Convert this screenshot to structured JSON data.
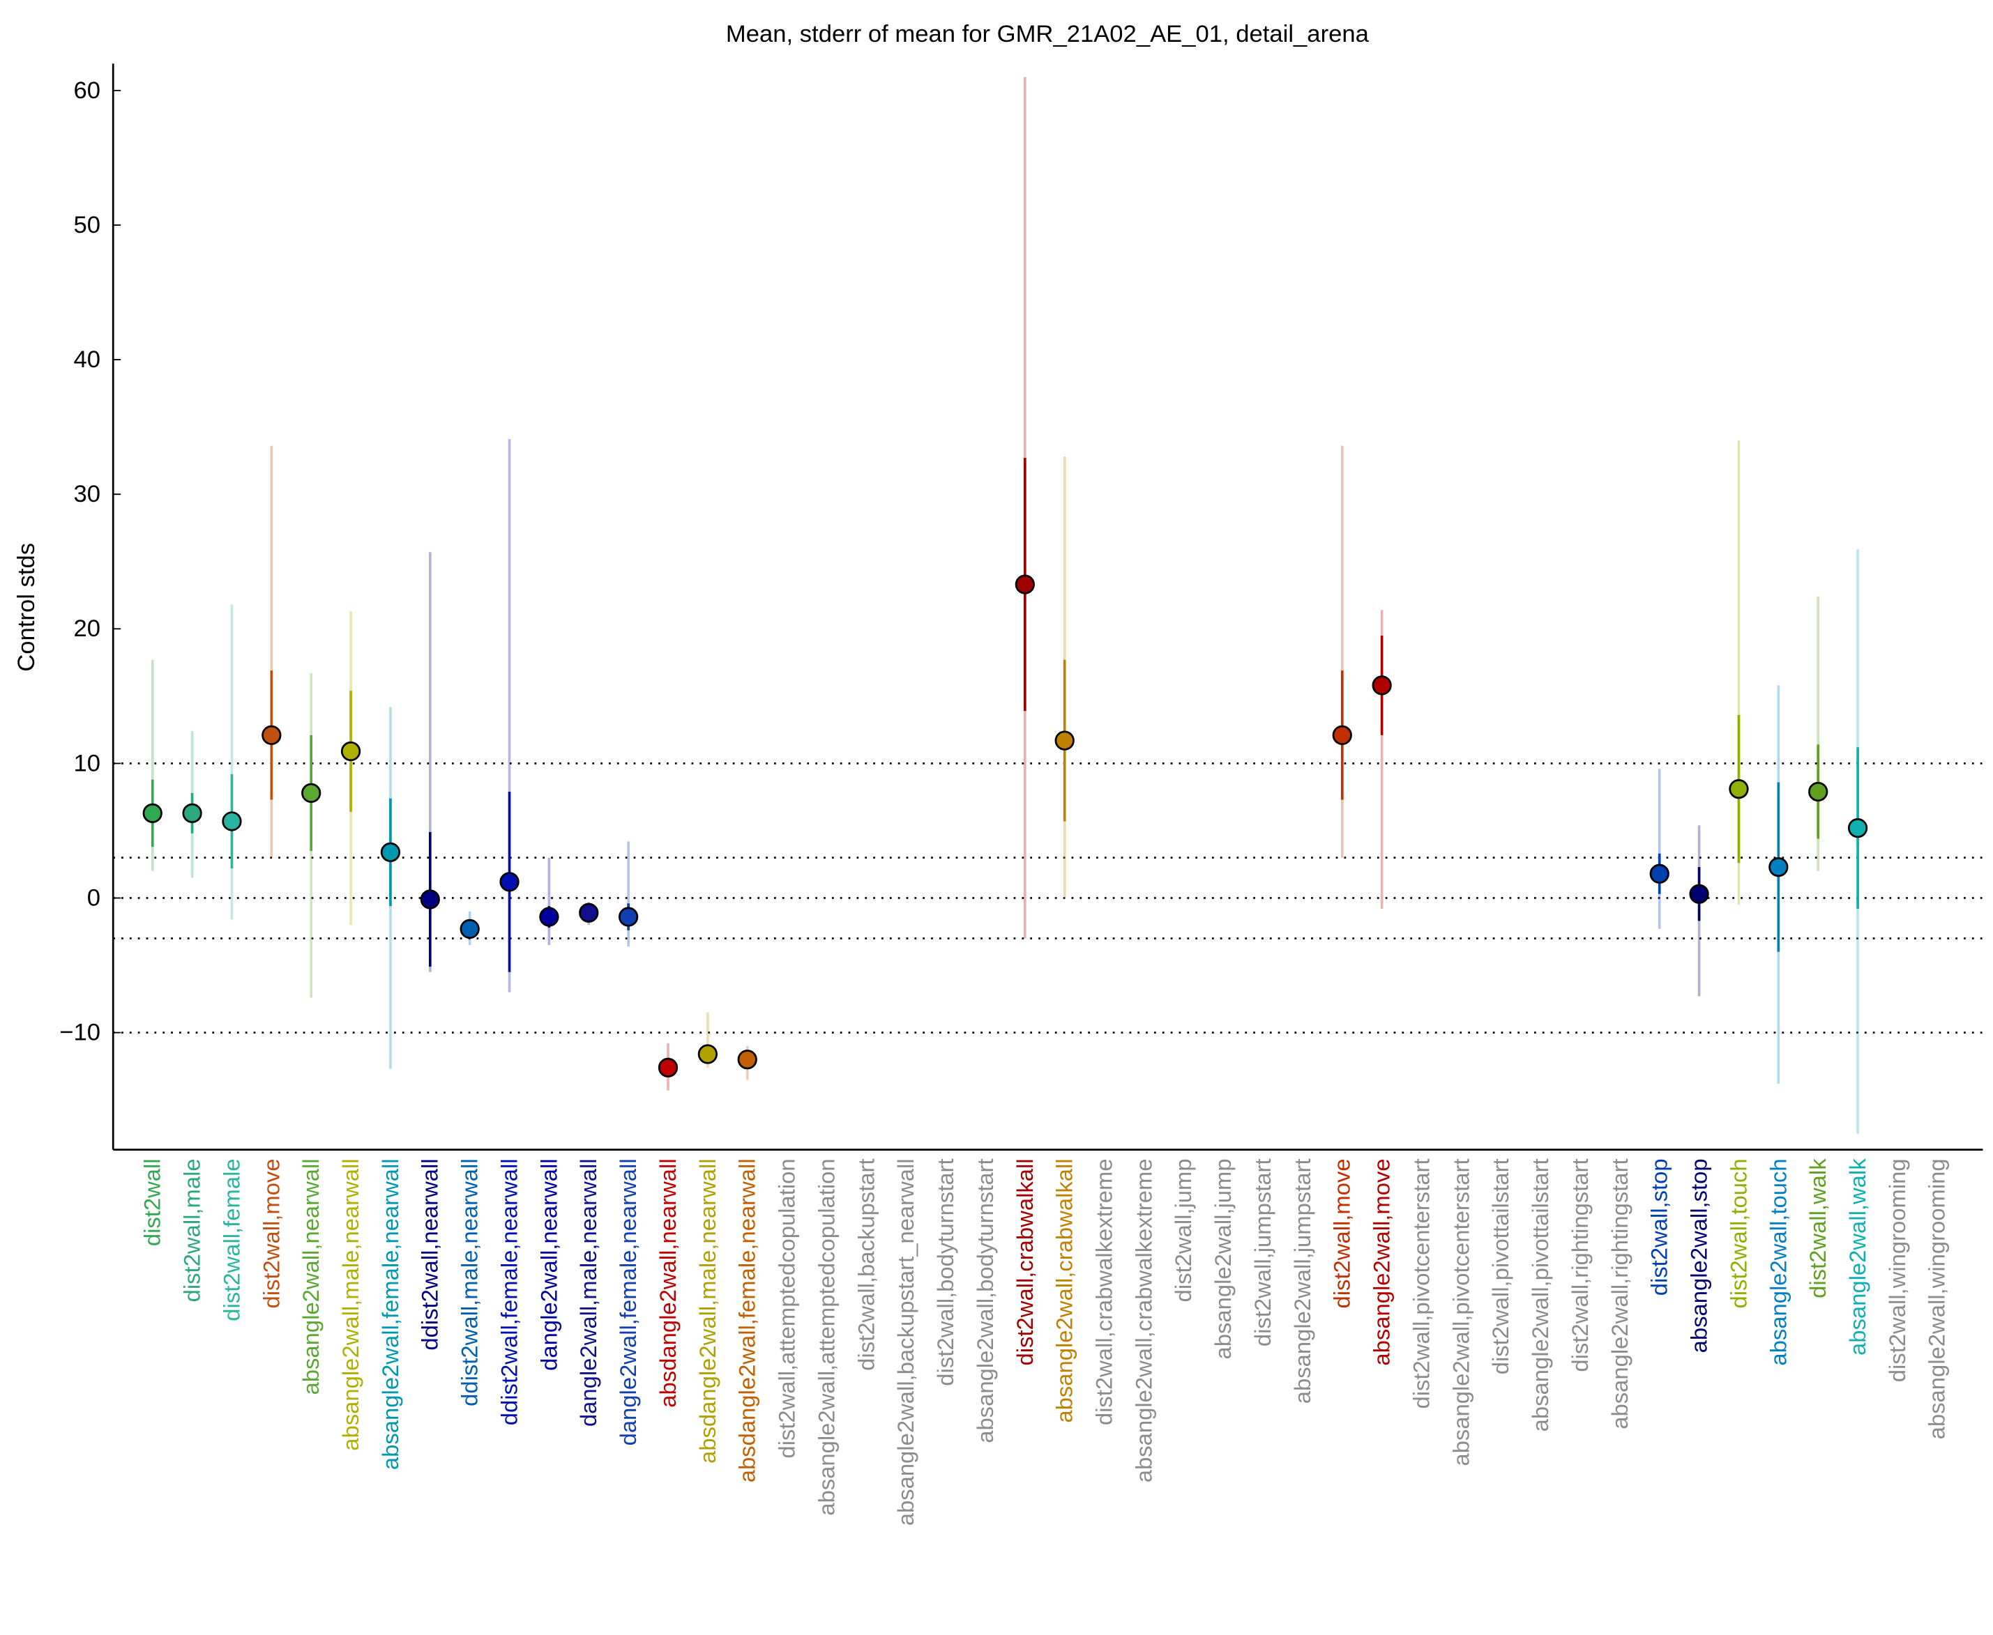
{
  "chart_data": {
    "type": "errorbar",
    "title": "Mean, stderr of mean for GMR_21A02_AE_01, detail_arena",
    "y_label": "Control stds",
    "categories": [
      "dist2wall",
      "dist2wall,male",
      "dist2wall,female",
      "dist2wall,move",
      "absangle2wall,nearwall",
      "absangle2wall,male,nearwall",
      "absangle2wall,female,nearwall",
      "ddist2wall,nearwall",
      "ddist2wall,male,nearwall",
      "ddist2wall,female,nearwall",
      "dangle2wall,nearwall",
      "dangle2wall,male,nearwall",
      "dangle2wall,female,nearwall",
      "absdangle2wall,nearwall",
      "absdangle2wall,male,nearwall",
      "absdangle2wall,female,nearwall",
      "dist2wall,attemptedcopulation",
      "absangle2wall,attemptedcopulation",
      "dist2wall,backupstart",
      "absangle2wall,backupstart_nearwall",
      "dist2wall,bodyturnstart",
      "absangle2wall,bodyturnstart",
      "dist2wall,crabwalkall",
      "absangle2wall,crabwalkall",
      "dist2wall,crabwalkextreme",
      "absangle2wall,crabwalkextreme",
      "dist2wall,jump",
      "absangle2wall,jump",
      "dist2wall,jumpstart",
      "absangle2wall,jumpstart",
      "dist2wall,move",
      "absangle2wall,move",
      "dist2wall,pivotcenterstart",
      "absangle2wall,pivotcenterstart",
      "dist2wall,pivottailstart",
      "absangle2wall,pivottailstart",
      "dist2wall,rightingstart",
      "absangle2wall,rightingstart",
      "dist2wall,stop",
      "absangle2wall,stop",
      "dist2wall,touch",
      "absangle2wall,touch",
      "dist2wall,walk",
      "absangle2wall,walk",
      "dist2wall,wingrooming",
      "absangle2wall,wingrooming"
    ],
    "colors": [
      "#33a852",
      "#2ca87f",
      "#2ab5a0",
      "#c05010",
      "#5aa832",
      "#b0b000",
      "#0098b0",
      "#000080",
      "#0060b0",
      "#0010b0",
      "#0000a0",
      "#10108a",
      "#1040b0",
      "#c00000",
      "#b0a000",
      "#c06000",
      "#8c8c8c",
      "#8c8c8c",
      "#8c8c8c",
      "#8c8c8c",
      "#8c8c8c",
      "#8c8c8c",
      "#a00000",
      "#c08000",
      "#8c8c8c",
      "#8c8c8c",
      "#8c8c8c",
      "#8c8c8c",
      "#8c8c8c",
      "#8c8c8c",
      "#c03000",
      "#b00000",
      "#8c8c8c",
      "#8c8c8c",
      "#8c8c8c",
      "#8c8c8c",
      "#8c8c8c",
      "#8c8c8c",
      "#0040b0",
      "#000070",
      "#90b000",
      "#0080c0",
      "#60a020",
      "#10b0b0",
      "#8c8c8c",
      "#8c8c8c"
    ],
    "means": [
      6.3,
      6.3,
      5.7,
      12.1,
      7.8,
      10.9,
      3.4,
      -0.1,
      -2.3,
      1.2,
      -1.4,
      -1.1,
      -1.4,
      -12.6,
      -11.6,
      -12,
      null,
      null,
      null,
      null,
      null,
      null,
      23.3,
      11.7,
      null,
      null,
      null,
      null,
      null,
      null,
      12.1,
      15.8,
      null,
      null,
      null,
      null,
      null,
      null,
      1.8,
      0.3,
      8.1,
      2.3,
      7.9,
      5.2,
      null,
      null
    ],
    "stderr": [
      2.5,
      1.5,
      3.5,
      4.8,
      4.3,
      4.5,
      4,
      5,
      0.5,
      6.7,
      0.8,
      0.5,
      1,
      0.4,
      0.4,
      0.4,
      null,
      null,
      null,
      null,
      null,
      null,
      9.4,
      6,
      null,
      null,
      null,
      null,
      null,
      null,
      4.8,
      3.7,
      null,
      null,
      null,
      null,
      null,
      null,
      1.5,
      2,
      5.5,
      6.3,
      3.5,
      6,
      null,
      null
    ],
    "min": [
      2,
      1.5,
      -1.6,
      3,
      -7.4,
      -2,
      -12.7,
      -5.5,
      -3.5,
      -7,
      -3.5,
      -2,
      -3.6,
      -14.3,
      -12.6,
      -13.5,
      null,
      null,
      null,
      null,
      null,
      null,
      -3,
      0,
      null,
      null,
      null,
      null,
      null,
      null,
      3,
      -0.8,
      null,
      null,
      null,
      null,
      null,
      null,
      -2.3,
      -7.3,
      -0.5,
      -13.8,
      2,
      -17.5,
      null,
      null
    ],
    "max": [
      17.7,
      12.4,
      21.8,
      33.6,
      16.7,
      21.3,
      14.2,
      25.7,
      -1,
      34.1,
      3,
      -0.3,
      4.2,
      -10.8,
      -8.5,
      -11,
      null,
      null,
      null,
      null,
      null,
      null,
      61,
      32.8,
      null,
      null,
      null,
      null,
      null,
      null,
      33.6,
      21.4,
      null,
      null,
      null,
      null,
      null,
      null,
      9.6,
      5.4,
      34,
      15.8,
      22.4,
      25.9,
      null,
      null
    ],
    "ylim": [
      -18.7,
      62
    ],
    "yticks": [
      {
        "value": -10,
        "label": "−10"
      },
      0,
      10,
      20,
      30,
      40,
      50,
      60
    ],
    "hlines": [
      -10,
      -3,
      0,
      3,
      10
    ]
  }
}
